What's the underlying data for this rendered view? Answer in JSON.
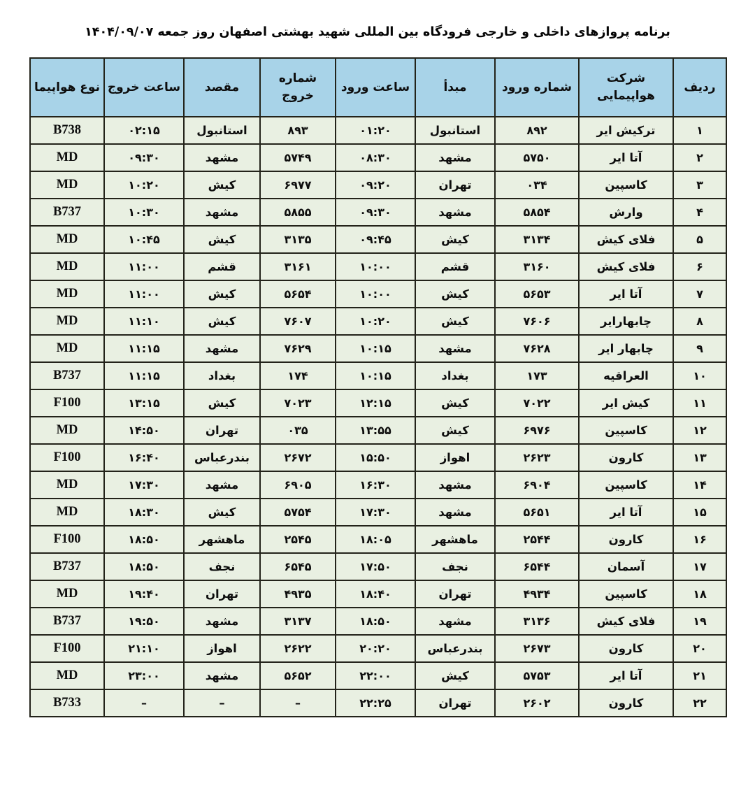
{
  "title": "برنامه پروازهای داخلی و خارجی فرودگاه بین المللی شهید بهشتی اصفهان روز جمعه ۱۴۰۴/۰۹/۰۷",
  "colors": {
    "header_bg": "#a8d3e8",
    "row_bg": "#e9f0e2",
    "highlight_bg": "#fbd488",
    "border": "#23231a",
    "text": "#0d0d0d"
  },
  "table": {
    "columns": [
      {
        "id": "row-index",
        "label": "ردیف",
        "kind": "num"
      },
      {
        "id": "airline",
        "label": "شرکت هواپیمایی",
        "kind": "text"
      },
      {
        "id": "arrival-number",
        "label": "شماره ورود",
        "kind": "num"
      },
      {
        "id": "origin",
        "label": "مبدأ",
        "kind": "text"
      },
      {
        "id": "arrival-time",
        "label": "ساعت ورود",
        "kind": "time"
      },
      {
        "id": "departure-number",
        "label": "شماره خروج",
        "kind": "num"
      },
      {
        "id": "destination",
        "label": "مقصد",
        "kind": "text"
      },
      {
        "id": "departure-time",
        "label": "ساعت خروج",
        "kind": "time"
      },
      {
        "id": "aircraft-type",
        "label": "نوع هواپیما",
        "kind": "latin"
      }
    ],
    "highlight_columns": [
      2,
      3,
      4,
      5,
      6,
      7
    ],
    "rows": [
      {
        "highlight": true,
        "cells": [
          "۱",
          "ترکیش ایر",
          "۸۹۲",
          "استانبول",
          "۰۱:۲۰",
          "۸۹۳",
          "استانبول",
          "۰۲:۱۵",
          "B738"
        ]
      },
      {
        "highlight": false,
        "cells": [
          "۲",
          "آتا ایر",
          "۵۷۵۰",
          "مشهد",
          "۰۸:۳۰",
          "۵۷۴۹",
          "مشهد",
          "۰۹:۳۰",
          "MD"
        ]
      },
      {
        "highlight": false,
        "cells": [
          "۳",
          "کاسپین",
          "۰۳۴",
          "تهران",
          "۰۹:۲۰",
          "۶۹۷۷",
          "کیش",
          "۱۰:۲۰",
          "MD"
        ]
      },
      {
        "highlight": false,
        "cells": [
          "۴",
          "وارش",
          "۵۸۵۴",
          "مشهد",
          "۰۹:۳۰",
          "۵۸۵۵",
          "مشهد",
          "۱۰:۳۰",
          "B737"
        ]
      },
      {
        "highlight": false,
        "cells": [
          "۵",
          "فلای کیش",
          "۳۱۳۴",
          "کیش",
          "۰۹:۴۵",
          "۳۱۳۵",
          "کیش",
          "۱۰:۴۵",
          "MD"
        ]
      },
      {
        "highlight": false,
        "cells": [
          "۶",
          "فلای کیش",
          "۳۱۶۰",
          "قشم",
          "۱۰:۰۰",
          "۳۱۶۱",
          "قشم",
          "۱۱:۰۰",
          "MD"
        ]
      },
      {
        "highlight": false,
        "cells": [
          "۷",
          "آتا ایر",
          "۵۶۵۳",
          "کیش",
          "۱۰:۰۰",
          "۵۶۵۴",
          "کیش",
          "۱۱:۰۰",
          "MD"
        ]
      },
      {
        "highlight": false,
        "cells": [
          "۸",
          "چابهارایر",
          "۷۶۰۶",
          "کیش",
          "۱۰:۲۰",
          "۷۶۰۷",
          "کیش",
          "۱۱:۱۰",
          "MD"
        ]
      },
      {
        "highlight": false,
        "cells": [
          "۹",
          "چابهار ایر",
          "۷۶۲۸",
          "مشهد",
          "۱۰:۱۵",
          "۷۶۲۹",
          "مشهد",
          "۱۱:۱۵",
          "MD"
        ]
      },
      {
        "highlight": true,
        "cells": [
          "۱۰",
          "العراقیه",
          "۱۷۳",
          "بغداد",
          "۱۰:۱۵",
          "۱۷۴",
          "بغداد",
          "۱۱:۱۵",
          "B737"
        ]
      },
      {
        "highlight": false,
        "cells": [
          "۱۱",
          "کیش ایر",
          "۷۰۲۲",
          "کیش",
          "۱۲:۱۵",
          "۷۰۲۳",
          "کیش",
          "۱۳:۱۵",
          "F100"
        ]
      },
      {
        "highlight": false,
        "cells": [
          "۱۲",
          "کاسپین",
          "۶۹۷۶",
          "کیش",
          "۱۳:۵۵",
          "۰۳۵",
          "تهران",
          "۱۴:۵۰",
          "MD"
        ]
      },
      {
        "highlight": false,
        "cells": [
          "۱۳",
          "کارون",
          "۲۶۲۳",
          "اهواز",
          "۱۵:۵۰",
          "۲۶۷۲",
          "بندرعباس",
          "۱۶:۴۰",
          "F100"
        ]
      },
      {
        "highlight": false,
        "cells": [
          "۱۴",
          "کاسپین",
          "۶۹۰۴",
          "مشهد",
          "۱۶:۳۰",
          "۶۹۰۵",
          "مشهد",
          "۱۷:۳۰",
          "MD"
        ]
      },
      {
        "highlight": false,
        "cells": [
          "۱۵",
          "آتا ایر",
          "۵۶۵۱",
          "مشهد",
          "۱۷:۳۰",
          "۵۷۵۴",
          "کیش",
          "۱۸:۳۰",
          "MD"
        ]
      },
      {
        "highlight": false,
        "cells": [
          "۱۶",
          "کارون",
          "۲۵۴۴",
          "ماهشهر",
          "۱۸:۰۵",
          "۲۵۴۵",
          "ماهشهر",
          "۱۸:۵۰",
          "F100"
        ]
      },
      {
        "highlight": true,
        "cells": [
          "۱۷",
          "آسمان",
          "۶۵۴۴",
          "نجف",
          "۱۷:۵۰",
          "۶۵۴۵",
          "نجف",
          "۱۸:۵۰",
          "B737"
        ]
      },
      {
        "highlight": false,
        "cells": [
          "۱۸",
          "کاسپین",
          "۴۹۳۴",
          "تهران",
          "۱۸:۴۰",
          "۴۹۳۵",
          "تهران",
          "۱۹:۴۰",
          "MD"
        ]
      },
      {
        "highlight": false,
        "cells": [
          "۱۹",
          "فلای کیش",
          "۳۱۳۶",
          "مشهد",
          "۱۸:۵۰",
          "۳۱۳۷",
          "مشهد",
          "۱۹:۵۰",
          "B737"
        ]
      },
      {
        "highlight": false,
        "cells": [
          "۲۰",
          "کارون",
          "۲۶۷۳",
          "بندرعباس",
          "۲۰:۲۰",
          "۲۶۲۲",
          "اهواز",
          "۲۱:۱۰",
          "F100"
        ]
      },
      {
        "highlight": false,
        "cells": [
          "۲۱",
          "آتا ایر",
          "۵۷۵۳",
          "کیش",
          "۲۲:۰۰",
          "۵۶۵۲",
          "مشهد",
          "۲۳:۰۰",
          "MD"
        ]
      },
      {
        "highlight": false,
        "cells": [
          "۲۲",
          "کارون",
          "۲۶۰۲",
          "تهران",
          "۲۲:۲۵",
          "–",
          "–",
          "–",
          "B733"
        ]
      }
    ]
  }
}
